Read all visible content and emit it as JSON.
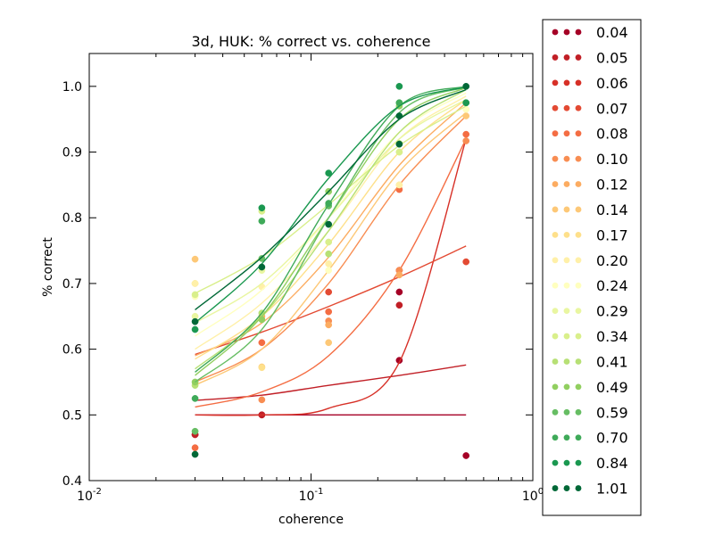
{
  "chart_data": {
    "type": "scatter",
    "title": "3d, HUK: % correct vs. coherence",
    "xlabel": "coherence",
    "ylabel": "% correct",
    "xscale": "log",
    "xlim": [
      0.01,
      1.0
    ],
    "ylim": [
      0.4,
      1.05
    ],
    "xticks": [
      {
        "value": 0.01,
        "base": "10",
        "exp": "-2"
      },
      {
        "value": 0.1,
        "base": "10",
        "exp": "-1"
      },
      {
        "value": 1.0,
        "base": "10",
        "exp": "0"
      }
    ],
    "yticks": [
      {
        "value": 0.4,
        "label": "0.4"
      },
      {
        "value": 0.5,
        "label": "0.5"
      },
      {
        "value": 0.6,
        "label": "0.6"
      },
      {
        "value": 0.7,
        "label": "0.7"
      },
      {
        "value": 0.8,
        "label": "0.8"
      },
      {
        "value": 0.9,
        "label": "0.9"
      },
      {
        "value": 1.0,
        "label": "1.0"
      }
    ],
    "legend_position": "outside-right",
    "x_points": [
      0.03,
      0.06,
      0.12,
      0.25,
      0.5
    ],
    "series": [
      {
        "name": "0.04",
        "color": "#a50026",
        "points": [
          [
            0.03,
            0.47
          ],
          [
            0.06,
            0.5
          ],
          [
            0.25,
            0.583
          ],
          [
            0.25,
            0.687
          ],
          [
            0.5,
            0.438
          ]
        ],
        "fit": [
          0.5,
          0.5,
          0.5,
          0.5,
          0.5
        ]
      },
      {
        "name": "0.05",
        "color": "#c11f26",
        "points": [
          [
            0.03,
            0.47
          ],
          [
            0.06,
            0.5
          ],
          [
            0.25,
            0.667
          ]
        ],
        "fit": [
          0.522,
          0.53,
          0.545,
          0.56,
          0.576
        ]
      },
      {
        "name": "0.06",
        "color": "#d73027",
        "points": [
          [
            0.25,
            0.72
          ]
        ],
        "fit": [
          0.5,
          0.5,
          0.51,
          0.58,
          0.92
        ]
      },
      {
        "name": "0.07",
        "color": "#e34a33",
        "points": [
          [
            0.12,
            0.687
          ],
          [
            0.25,
            0.72
          ],
          [
            0.5,
            0.733
          ]
        ],
        "fit": [
          0.592,
          0.626,
          0.665,
          0.71,
          0.757
        ]
      },
      {
        "name": "0.08",
        "color": "#f46d43",
        "points": [
          [
            0.03,
            0.45
          ],
          [
            0.06,
            0.61
          ],
          [
            0.12,
            0.657
          ],
          [
            0.25,
            0.843
          ],
          [
            0.5,
            0.927
          ]
        ],
        "fit": [
          0.512,
          0.535,
          0.59,
          0.72,
          0.92
        ]
      },
      {
        "name": "0.10",
        "color": "#f88d52",
        "points": [
          [
            0.06,
            0.523
          ],
          [
            0.12,
            0.643
          ],
          [
            0.25,
            0.72
          ],
          [
            0.5,
            0.917
          ]
        ],
        "fit": [
          0.55,
          0.6,
          0.7,
          0.85,
          0.955
        ]
      },
      {
        "name": "0.12",
        "color": "#fcac61",
        "points": [
          [
            0.06,
            0.65
          ],
          [
            0.12,
            0.637
          ],
          [
            0.25,
            0.713
          ]
        ],
        "fit": [
          0.59,
          0.64,
          0.74,
          0.88,
          0.975
        ]
      },
      {
        "name": "0.14",
        "color": "#fdc877",
        "points": [
          [
            0.03,
            0.737
          ],
          [
            0.06,
            0.573
          ],
          [
            0.12,
            0.61
          ],
          [
            0.5,
            0.955
          ]
        ],
        "fit": [
          0.545,
          0.6,
          0.72,
          0.87,
          0.96
        ]
      },
      {
        "name": "0.17",
        "color": "#fee08b",
        "points": [
          [
            0.03,
            0.7
          ],
          [
            0.06,
            0.572
          ],
          [
            0.25,
            0.85
          ]
        ],
        "fit": [
          0.585,
          0.65,
          0.76,
          0.9,
          0.98
        ]
      },
      {
        "name": "0.20",
        "color": "#fff0a8",
        "points": [
          [
            0.03,
            0.7
          ],
          [
            0.06,
            0.695
          ],
          [
            0.12,
            0.73
          ],
          [
            0.25,
            0.85
          ]
        ],
        "fit": [
          0.6,
          0.67,
          0.78,
          0.92,
          0.985
        ]
      },
      {
        "name": "0.24",
        "color": "#ffffbf",
        "points": [
          [
            0.03,
            0.68
          ],
          [
            0.12,
            0.72
          ],
          [
            0.5,
            0.965
          ]
        ],
        "fit": [
          0.62,
          0.69,
          0.8,
          0.93,
          0.99
        ]
      },
      {
        "name": "0.29",
        "color": "#e9f6a1",
        "points": [
          [
            0.03,
            0.65
          ],
          [
            0.06,
            0.72
          ],
          [
            0.25,
            0.9
          ]
        ],
        "fit": [
          0.64,
          0.7,
          0.8,
          0.92,
          0.98
        ]
      },
      {
        "name": "0.34",
        "color": "#d9ef8b",
        "points": [
          [
            0.03,
            0.683
          ],
          [
            0.06,
            0.81
          ],
          [
            0.12,
            0.763
          ],
          [
            0.25,
            0.9
          ]
        ],
        "fit": [
          0.685,
          0.74,
          0.82,
          0.91,
          0.97
        ]
      },
      {
        "name": "0.41",
        "color": "#b7e075",
        "points": [
          [
            0.03,
            0.545
          ],
          [
            0.06,
            0.655
          ],
          [
            0.12,
            0.745
          ],
          [
            0.25,
            0.913
          ]
        ],
        "fit": [
          0.57,
          0.65,
          0.78,
          0.93,
          0.995
        ]
      },
      {
        "name": "0.49",
        "color": "#91cf60",
        "points": [
          [
            0.03,
            0.55
          ],
          [
            0.06,
            0.645
          ],
          [
            0.12,
            0.84
          ],
          [
            0.25,
            0.97
          ]
        ],
        "fit": [
          0.56,
          0.65,
          0.8,
          0.95,
          0.998
        ]
      },
      {
        "name": "0.59",
        "color": "#66bd63",
        "points": [
          [
            0.03,
            0.475
          ],
          [
            0.06,
            0.738
          ],
          [
            0.12,
            0.818
          ],
          [
            0.25,
            0.975
          ]
        ],
        "fit": [
          0.55,
          0.63,
          0.8,
          0.96,
          0.999
        ]
      },
      {
        "name": "0.70",
        "color": "#3faa59",
        "points": [
          [
            0.03,
            0.525
          ],
          [
            0.06,
            0.795
          ],
          [
            0.12,
            0.822
          ],
          [
            0.25,
            0.975
          ],
          [
            0.5,
            0.975
          ]
        ],
        "fit": [
          0.565,
          0.655,
          0.82,
          0.97,
          1.0
        ]
      },
      {
        "name": "0.84",
        "color": "#1a9850",
        "points": [
          [
            0.03,
            0.63
          ],
          [
            0.06,
            0.815
          ],
          [
            0.12,
            0.868
          ],
          [
            0.25,
            1.0
          ],
          [
            0.5,
            0.975
          ]
        ],
        "fit": [
          0.64,
          0.73,
          0.86,
          0.97,
          0.999
        ]
      },
      {
        "name": "1.01",
        "color": "#006837",
        "points": [
          [
            0.03,
            0.44
          ],
          [
            0.03,
            0.642
          ],
          [
            0.06,
            0.725
          ],
          [
            0.12,
            0.79
          ],
          [
            0.25,
            0.955
          ],
          [
            0.25,
            0.912
          ],
          [
            0.5,
            1.0
          ]
        ],
        "fit": [
          0.66,
          0.74,
          0.84,
          0.95,
          0.995
        ]
      }
    ]
  }
}
